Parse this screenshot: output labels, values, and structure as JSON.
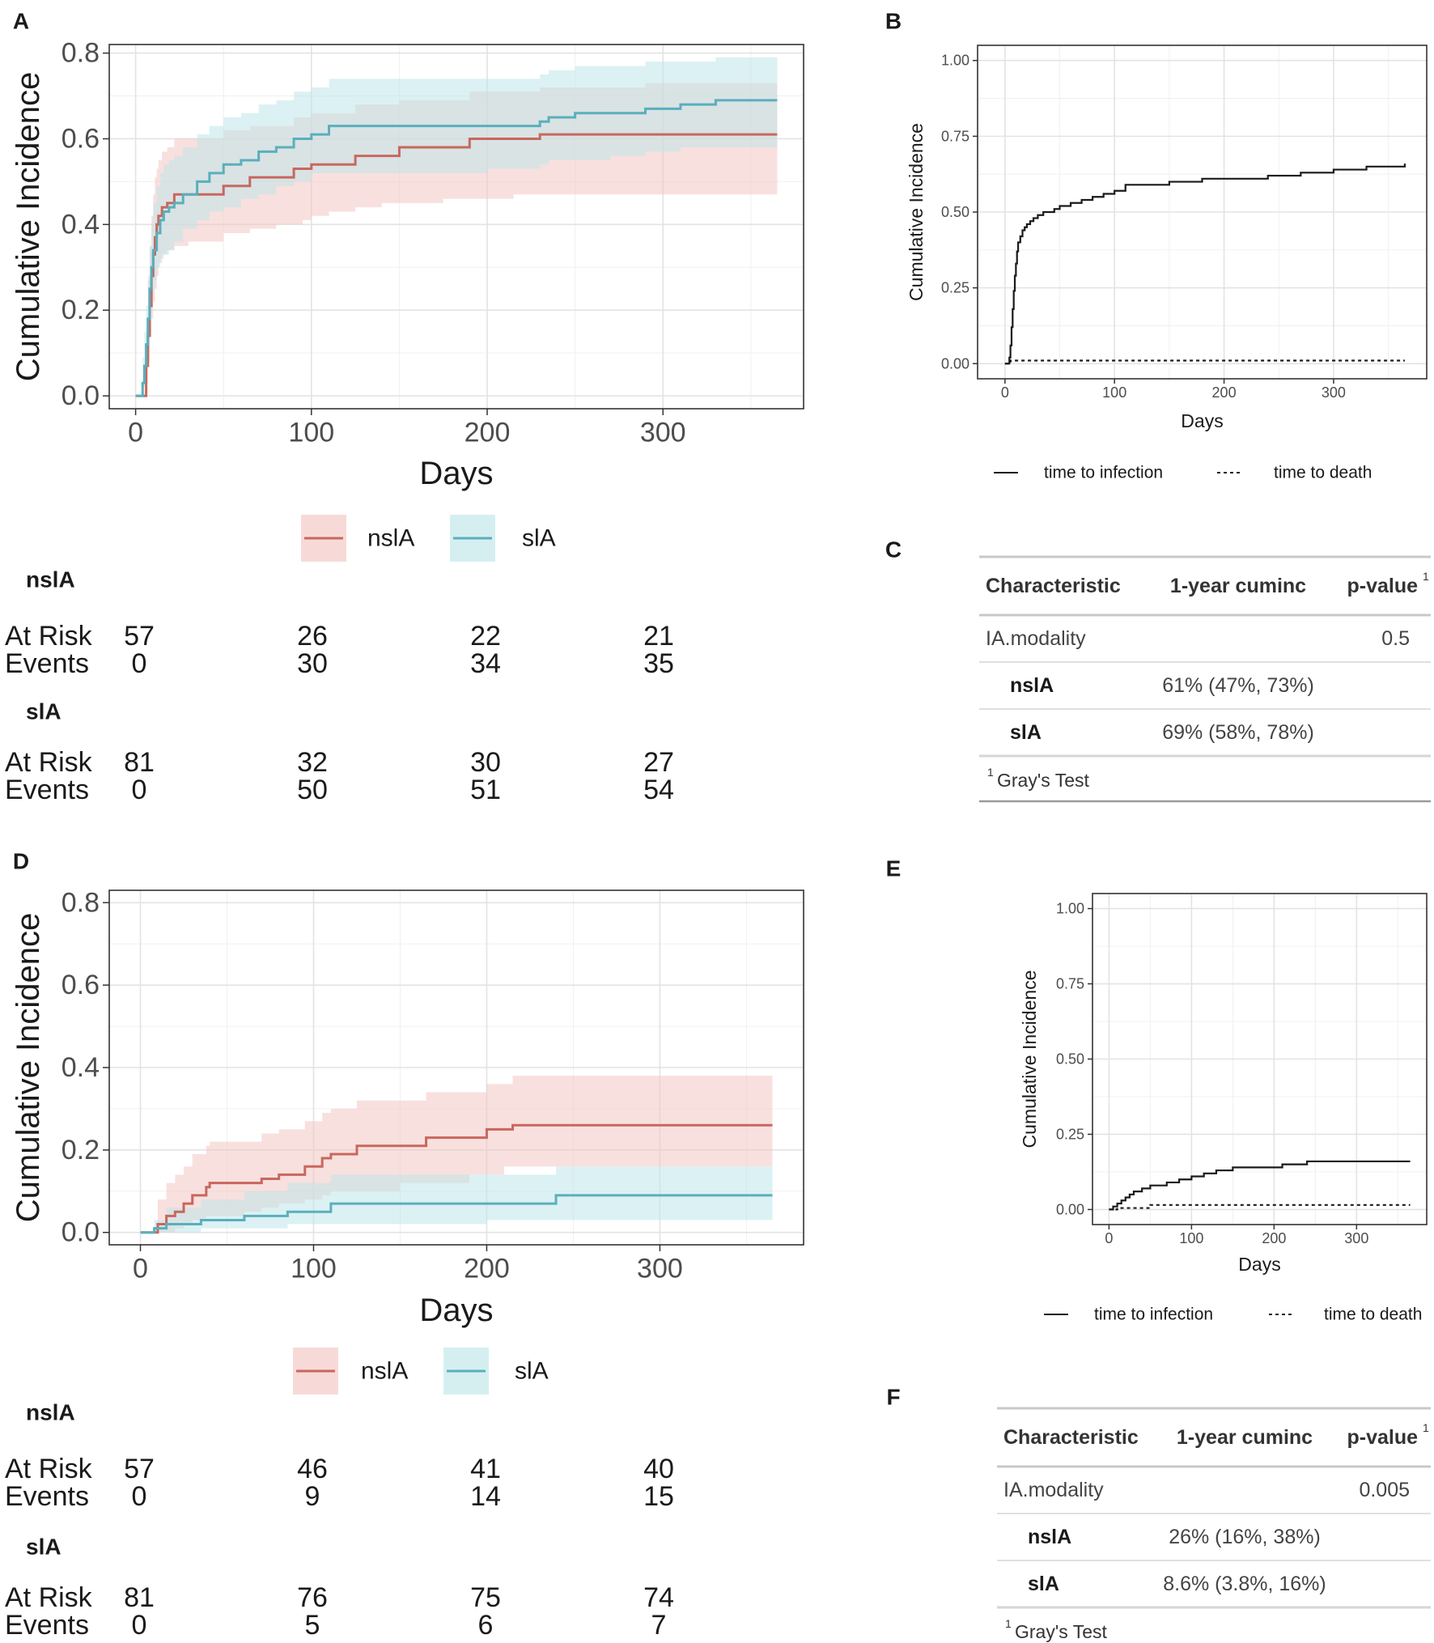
{
  "panel_labels": [
    "A",
    "B",
    "C",
    "D",
    "E",
    "F"
  ],
  "chart_data": [
    {
      "panel": "A",
      "type": "line",
      "title": "",
      "xlabel": "Days",
      "ylabel": "Cumulative Incidence",
      "xlim": [
        -15,
        380
      ],
      "ylim": [
        -0.03,
        0.82
      ],
      "xticks": [
        0,
        100,
        200,
        300
      ],
      "yticks": [
        0.0,
        0.2,
        0.4,
        0.6,
        0.8
      ],
      "xtick_labels": [
        "0",
        "100",
        "200",
        "300"
      ],
      "ytick_labels": [
        "0.0",
        "0.2",
        "0.4",
        "0.6",
        "0.8"
      ],
      "legend_position": "bottom",
      "series": [
        {
          "name": "nslA",
          "color": "#C8675F",
          "band_color": "#F3C6C2",
          "x": [
            0,
            5,
            6,
            7,
            8,
            9,
            10,
            11,
            12,
            13,
            15,
            18,
            22,
            30,
            50,
            65,
            80,
            90,
            95,
            100,
            105,
            110,
            125,
            140,
            150,
            165,
            175,
            190,
            200,
            215,
            230,
            245,
            260,
            290,
            365
          ],
          "y": [
            0.0,
            0.0,
            0.07,
            0.14,
            0.21,
            0.28,
            0.33,
            0.37,
            0.4,
            0.42,
            0.44,
            0.45,
            0.47,
            0.47,
            0.49,
            0.51,
            0.51,
            0.53,
            0.53,
            0.54,
            0.54,
            0.54,
            0.56,
            0.56,
            0.58,
            0.58,
            0.58,
            0.6,
            0.6,
            0.6,
            0.61,
            0.61,
            0.61,
            0.61,
            0.61
          ],
          "lower": [
            0.0,
            0.0,
            0.0,
            0.03,
            0.08,
            0.14,
            0.18,
            0.22,
            0.25,
            0.28,
            0.31,
            0.33,
            0.34,
            0.35,
            0.36,
            0.38,
            0.39,
            0.4,
            0.4,
            0.41,
            0.42,
            0.42,
            0.43,
            0.44,
            0.45,
            0.45,
            0.45,
            0.46,
            0.46,
            0.46,
            0.47,
            0.47,
            0.47,
            0.47,
            0.47
          ],
          "upper": [
            0.0,
            0.0,
            0.16,
            0.27,
            0.35,
            0.42,
            0.47,
            0.51,
            0.53,
            0.55,
            0.57,
            0.58,
            0.6,
            0.6,
            0.62,
            0.63,
            0.63,
            0.65,
            0.65,
            0.66,
            0.66,
            0.66,
            0.68,
            0.68,
            0.69,
            0.69,
            0.69,
            0.71,
            0.71,
            0.71,
            0.72,
            0.72,
            0.72,
            0.73,
            0.73
          ]
        },
        {
          "name": "slA",
          "color": "#5AAFBC",
          "band_color": "#BFE6EA",
          "x": [
            0,
            3,
            4,
            5,
            6,
            7,
            8,
            9,
            10,
            12,
            14,
            16,
            19,
            22,
            27,
            35,
            42,
            50,
            60,
            70,
            80,
            90,
            100,
            110,
            150,
            200,
            230,
            235,
            250,
            270,
            290,
            310,
            330,
            365
          ],
          "y": [
            0.0,
            0.0,
            0.03,
            0.07,
            0.12,
            0.18,
            0.25,
            0.3,
            0.34,
            0.38,
            0.41,
            0.43,
            0.44,
            0.45,
            0.47,
            0.5,
            0.52,
            0.54,
            0.55,
            0.57,
            0.58,
            0.6,
            0.61,
            0.63,
            0.63,
            0.63,
            0.64,
            0.65,
            0.66,
            0.66,
            0.67,
            0.68,
            0.69,
            0.69
          ],
          "lower": [
            0.0,
            0.0,
            0.0,
            0.02,
            0.05,
            0.1,
            0.15,
            0.19,
            0.23,
            0.27,
            0.3,
            0.32,
            0.33,
            0.34,
            0.36,
            0.39,
            0.41,
            0.43,
            0.44,
            0.46,
            0.47,
            0.49,
            0.5,
            0.52,
            0.52,
            0.52,
            0.53,
            0.54,
            0.55,
            0.55,
            0.56,
            0.57,
            0.58,
            0.58
          ],
          "upper": [
            0.0,
            0.0,
            0.09,
            0.15,
            0.21,
            0.28,
            0.35,
            0.4,
            0.45,
            0.49,
            0.52,
            0.54,
            0.55,
            0.56,
            0.58,
            0.61,
            0.63,
            0.65,
            0.66,
            0.68,
            0.69,
            0.71,
            0.72,
            0.74,
            0.74,
            0.74,
            0.75,
            0.76,
            0.77,
            0.77,
            0.78,
            0.78,
            0.79,
            0.79
          ]
        }
      ]
    },
    {
      "panel": "B",
      "type": "line",
      "title": "",
      "xlabel": "Days",
      "ylabel": "Cumulative Incidence",
      "xlim": [
        -25,
        385
      ],
      "ylim": [
        -0.05,
        1.05
      ],
      "xticks": [
        0,
        100,
        200,
        300
      ],
      "yticks": [
        0.0,
        0.25,
        0.5,
        0.75,
        1.0
      ],
      "xtick_labels": [
        "0",
        "100",
        "200",
        "300"
      ],
      "ytick_labels": [
        "0.00",
        "0.25",
        "0.50",
        "0.75",
        "1.00"
      ],
      "legend_position": "bottom",
      "series": [
        {
          "name": "time to infection",
          "linestyle": "solid",
          "x": [
            0,
            3,
            4,
            5,
            6,
            7,
            8,
            9,
            10,
            11,
            12,
            14,
            16,
            18,
            20,
            23,
            26,
            30,
            35,
            40,
            45,
            50,
            60,
            70,
            80,
            90,
            100,
            110,
            130,
            150,
            180,
            210,
            240,
            270,
            300,
            330,
            365
          ],
          "y": [
            0.0,
            0.0,
            0.02,
            0.06,
            0.12,
            0.18,
            0.24,
            0.29,
            0.33,
            0.37,
            0.4,
            0.42,
            0.44,
            0.45,
            0.46,
            0.47,
            0.48,
            0.49,
            0.5,
            0.5,
            0.51,
            0.52,
            0.53,
            0.54,
            0.55,
            0.56,
            0.57,
            0.59,
            0.59,
            0.6,
            0.61,
            0.61,
            0.62,
            0.63,
            0.64,
            0.65,
            0.66
          ]
        },
        {
          "name": "time to death",
          "linestyle": "dashed",
          "x": [
            0,
            5,
            365
          ],
          "y": [
            0.0,
            0.01,
            0.01
          ]
        }
      ]
    },
    {
      "panel": "D",
      "type": "line",
      "title": "",
      "xlabel": "Days",
      "ylabel": "Cumulative Incidence",
      "xlim": [
        -18,
        383
      ],
      "ylim": [
        -0.03,
        0.83
      ],
      "xticks": [
        0,
        100,
        200,
        300
      ],
      "yticks": [
        0.0,
        0.2,
        0.4,
        0.6,
        0.8
      ],
      "xtick_labels": [
        "0",
        "100",
        "200",
        "300"
      ],
      "ytick_labels": [
        "0.0",
        "0.2",
        "0.4",
        "0.6",
        "0.8"
      ],
      "legend_position": "bottom",
      "series": [
        {
          "name": "nslA",
          "color": "#C8675F",
          "band_color": "#F3C6C2",
          "x": [
            0,
            6,
            10,
            15,
            20,
            25,
            30,
            38,
            40,
            60,
            70,
            80,
            95,
            105,
            110,
            125,
            150,
            165,
            190,
            200,
            210,
            215,
            365
          ],
          "y": [
            0.0,
            0.0,
            0.02,
            0.04,
            0.05,
            0.07,
            0.09,
            0.11,
            0.12,
            0.12,
            0.13,
            0.14,
            0.16,
            0.18,
            0.19,
            0.21,
            0.21,
            0.23,
            0.23,
            0.25,
            0.25,
            0.26,
            0.26
          ],
          "lower": [
            0.0,
            0.0,
            0.0,
            0.0,
            0.0,
            0.01,
            0.02,
            0.03,
            0.04,
            0.04,
            0.05,
            0.06,
            0.07,
            0.08,
            0.09,
            0.1,
            0.1,
            0.12,
            0.12,
            0.14,
            0.14,
            0.16,
            0.16
          ],
          "upper": [
            0.0,
            0.0,
            0.08,
            0.12,
            0.14,
            0.16,
            0.19,
            0.21,
            0.22,
            0.22,
            0.24,
            0.25,
            0.27,
            0.29,
            0.3,
            0.32,
            0.32,
            0.34,
            0.34,
            0.36,
            0.36,
            0.38,
            0.38
          ]
        },
        {
          "name": "slA",
          "color": "#5AAFBC",
          "band_color": "#BFE6EA",
          "x": [
            0,
            8,
            15,
            35,
            60,
            85,
            110,
            150,
            200,
            240,
            365
          ],
          "y": [
            0.0,
            0.01,
            0.02,
            0.03,
            0.04,
            0.05,
            0.07,
            0.07,
            0.07,
            0.09,
            0.09
          ],
          "lower": [
            0.0,
            0.0,
            0.0,
            0.0,
            0.01,
            0.01,
            0.02,
            0.02,
            0.02,
            0.03,
            0.03
          ],
          "upper": [
            0.0,
            0.03,
            0.06,
            0.08,
            0.1,
            0.12,
            0.14,
            0.14,
            0.14,
            0.16,
            0.16
          ]
        }
      ]
    },
    {
      "panel": "E",
      "type": "line",
      "title": "",
      "xlabel": "Days",
      "ylabel": "Cumulative Incidence",
      "xlim": [
        -20,
        385
      ],
      "ylim": [
        -0.05,
        1.05
      ],
      "xticks": [
        0,
        100,
        200,
        300
      ],
      "yticks": [
        0.0,
        0.25,
        0.5,
        0.75,
        1.0
      ],
      "xtick_labels": [
        "0",
        "100",
        "200",
        "300"
      ],
      "ytick_labels": [
        "0.00",
        "0.25",
        "0.50",
        "0.75",
        "1.00"
      ],
      "legend_position": "bottom",
      "series": [
        {
          "name": "time to infection",
          "linestyle": "solid",
          "x": [
            0,
            5,
            10,
            15,
            20,
            25,
            30,
            40,
            50,
            60,
            70,
            85,
            100,
            115,
            130,
            150,
            180,
            210,
            240,
            280,
            320,
            365
          ],
          "y": [
            0.0,
            0.01,
            0.02,
            0.03,
            0.04,
            0.05,
            0.06,
            0.07,
            0.08,
            0.08,
            0.09,
            0.1,
            0.11,
            0.12,
            0.13,
            0.14,
            0.14,
            0.15,
            0.16,
            0.16,
            0.16,
            0.16
          ]
        },
        {
          "name": "time to death",
          "linestyle": "dashed",
          "x": [
            0,
            10,
            50,
            365
          ],
          "y": [
            0.0,
            0.005,
            0.015,
            0.015
          ]
        }
      ]
    }
  ],
  "risk_tables": {
    "A": {
      "groups": [
        {
          "name": "nslA",
          "rows": [
            {
              "label": "At Risk",
              "values": [
                "57",
                "26",
                "22",
                "21"
              ]
            },
            {
              "label": "Events",
              "values": [
                "0",
                "30",
                "34",
                "35"
              ]
            }
          ]
        },
        {
          "name": "slA",
          "rows": [
            {
              "label": "At Risk",
              "values": [
                "81",
                "32",
                "30",
                "27"
              ]
            },
            {
              "label": "Events",
              "values": [
                "0",
                "50",
                "51",
                "54"
              ]
            }
          ]
        }
      ]
    },
    "D": {
      "groups": [
        {
          "name": "nslA",
          "rows": [
            {
              "label": "At Risk",
              "values": [
                "57",
                "46",
                "41",
                "40"
              ]
            },
            {
              "label": "Events",
              "values": [
                "0",
                "9",
                "14",
                "15"
              ]
            }
          ]
        },
        {
          "name": "slA",
          "rows": [
            {
              "label": "At Risk",
              "values": [
                "81",
                "76",
                "75",
                "74"
              ]
            },
            {
              "label": "Events",
              "values": [
                "0",
                "5",
                "6",
                "7"
              ]
            }
          ]
        }
      ]
    }
  },
  "summary_tables": {
    "C": {
      "headers": [
        "Characteristic",
        "1-year cuminc",
        "p-value"
      ],
      "header_superscript": "1",
      "rows": [
        [
          "IA.modality",
          "",
          "0.5"
        ],
        [
          "nslA",
          "61% (47%, 73%)",
          ""
        ],
        [
          "slA",
          "69% (58%, 78%)",
          ""
        ]
      ],
      "footnote_mark": "1",
      "footnote": "Gray's Test"
    },
    "F": {
      "headers": [
        "Characteristic",
        "1-year cuminc",
        "p-value"
      ],
      "header_superscript": "1",
      "rows": [
        [
          "IA.modality",
          "",
          "0.005"
        ],
        [
          "nslA",
          "26% (16%, 38%)",
          ""
        ],
        [
          "slA",
          "8.6% (3.8%, 16%)",
          ""
        ]
      ],
      "footnote_mark": "1",
      "footnote": "Gray's Test"
    }
  }
}
